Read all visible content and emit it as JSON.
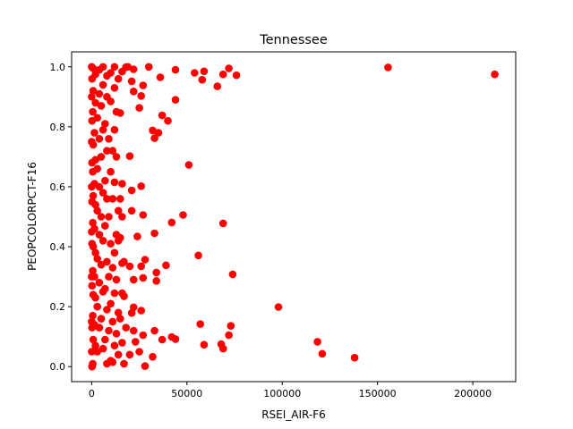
{
  "chart_data": {
    "type": "scatter",
    "title": "Tennessee",
    "xlabel": "RSEI_AIR-F6",
    "ylabel": "PEOPCOLORPCT-F16",
    "xlim": [
      -10500,
      222500
    ],
    "ylim": [
      -0.05,
      1.05
    ],
    "xticks": [
      0,
      50000,
      100000,
      150000,
      200000
    ],
    "xtick_labels": [
      "0",
      "50000",
      "100000",
      "150000",
      "200000"
    ],
    "yticks": [
      0.0,
      0.2,
      0.4,
      0.6,
      0.8,
      1.0
    ],
    "ytick_labels": [
      "0.0",
      "0.2",
      "0.4",
      "0.6",
      "0.8",
      "1.0"
    ],
    "grid": false,
    "marker_color": "#ff0000",
    "points": [
      [
        211500,
        0.975
      ],
      [
        155500,
        0.998
      ],
      [
        138000,
        0.03
      ],
      [
        121000,
        0.043
      ],
      [
        118500,
        0.083
      ],
      [
        98000,
        0.199
      ],
      [
        76000,
        0.972
      ],
      [
        72000,
        0.995
      ],
      [
        69000,
        0.975
      ],
      [
        66000,
        0.935
      ],
      [
        74000,
        0.308
      ],
      [
        73000,
        0.136
      ],
      [
        72000,
        0.105
      ],
      [
        69000,
        0.478
      ],
      [
        68000,
        0.075
      ],
      [
        69000,
        0.06
      ],
      [
        59000,
        0.985
      ],
      [
        58000,
        0.957
      ],
      [
        54000,
        0.98
      ],
      [
        44000,
        0.99
      ],
      [
        44000,
        0.89
      ],
      [
        56000,
        0.371
      ],
      [
        57000,
        0.142
      ],
      [
        59000,
        0.073
      ],
      [
        51000,
        0.673
      ],
      [
        48000,
        0.506
      ],
      [
        42000,
        0.481
      ],
      [
        39000,
        0.338
      ],
      [
        44000,
        0.092
      ],
      [
        42000,
        0.099
      ],
      [
        40000,
        0.82
      ],
      [
        36000,
        0.965
      ],
      [
        37000,
        0.838
      ],
      [
        35000,
        0.78
      ],
      [
        34000,
        0.314
      ],
      [
        33000,
        0.762
      ],
      [
        32000,
        0.788
      ],
      [
        33000,
        0.445
      ],
      [
        34000,
        0.286
      ],
      [
        33000,
        0.12
      ],
      [
        32000,
        0.033
      ],
      [
        37000,
        0.09
      ],
      [
        30000,
        1.0
      ],
      [
        27000,
        0.938
      ],
      [
        26000,
        0.903
      ],
      [
        25000,
        0.863
      ],
      [
        26000,
        0.602
      ],
      [
        27000,
        0.506
      ],
      [
        24000,
        0.434
      ],
      [
        28000,
        0.357
      ],
      [
        26000,
        0.335
      ],
      [
        27000,
        0.296
      ],
      [
        26000,
        0.187
      ],
      [
        27000,
        0.105
      ],
      [
        25000,
        0.05
      ],
      [
        28000,
        0.002
      ],
      [
        22000,
        0.992
      ],
      [
        21000,
        0.952
      ],
      [
        22000,
        0.918
      ],
      [
        19000,
        1.0
      ],
      [
        18000,
        0.999
      ],
      [
        20000,
        0.702
      ],
      [
        21000,
        0.588
      ],
      [
        21000,
        0.52
      ],
      [
        22000,
        0.29
      ],
      [
        22000,
        0.198
      ],
      [
        20000,
        0.335
      ],
      [
        21000,
        0.179
      ],
      [
        22000,
        0.12
      ],
      [
        23000,
        0.083
      ],
      [
        20000,
        0.04
      ],
      [
        16000,
        0.984
      ],
      [
        15000,
        0.846
      ],
      [
        16000,
        0.61
      ],
      [
        15000,
        0.56
      ],
      [
        16000,
        0.5
      ],
      [
        15000,
        0.43
      ],
      [
        16000,
        0.345
      ],
      [
        17000,
        0.35
      ],
      [
        16000,
        0.245
      ],
      [
        17000,
        0.235
      ],
      [
        15000,
        0.16
      ],
      [
        18000,
        0.13
      ],
      [
        16000,
        0.08
      ],
      [
        17000,
        0.01
      ],
      [
        14000,
        0.96
      ],
      [
        13000,
        0.85
      ],
      [
        13000,
        0.7
      ],
      [
        14000,
        0.52
      ],
      [
        13000,
        0.44
      ],
      [
        14000,
        0.42
      ],
      [
        13000,
        0.29
      ],
      [
        14000,
        0.18
      ],
      [
        13000,
        0.11
      ],
      [
        14000,
        0.04
      ],
      [
        12000,
        1.0
      ],
      [
        12000,
        0.93
      ],
      [
        12000,
        0.79
      ],
      [
        11000,
        0.72
      ],
      [
        12000,
        0.615
      ],
      [
        11000,
        0.56
      ],
      [
        12000,
        0.38
      ],
      [
        11000,
        0.33
      ],
      [
        12000,
        0.245
      ],
      [
        11000,
        0.15
      ],
      [
        12000,
        0.07
      ],
      [
        11000,
        0.015
      ],
      [
        10000,
        0.98
      ],
      [
        10000,
        0.885
      ],
      [
        9000,
        0.76
      ],
      [
        10000,
        0.65
      ],
      [
        9000,
        0.5
      ],
      [
        10000,
        0.41
      ],
      [
        9000,
        0.3
      ],
      [
        10000,
        0.21
      ],
      [
        9000,
        0.12
      ],
      [
        10000,
        0.02
      ],
      [
        8000,
        0.97
      ],
      [
        8000,
        0.9
      ],
      [
        7000,
        0.81
      ],
      [
        8000,
        0.72
      ],
      [
        7000,
        0.62
      ],
      [
        8000,
        0.56
      ],
      [
        7000,
        0.47
      ],
      [
        8000,
        0.35
      ],
      [
        7000,
        0.26
      ],
      [
        8000,
        0.19
      ],
      [
        7000,
        0.09
      ],
      [
        8000,
        0.01
      ],
      [
        6000,
        1.0
      ],
      [
        6000,
        0.94
      ],
      [
        5000,
        0.87
      ],
      [
        6000,
        0.79
      ],
      [
        5000,
        0.7
      ],
      [
        6000,
        0.58
      ],
      [
        5000,
        0.5
      ],
      [
        6000,
        0.42
      ],
      [
        5000,
        0.34
      ],
      [
        6000,
        0.25
      ],
      [
        5000,
        0.16
      ],
      [
        6000,
        0.06
      ],
      [
        4000,
        0.99
      ],
      [
        4000,
        0.91
      ],
      [
        3000,
        0.83
      ],
      [
        4000,
        0.76
      ],
      [
        3000,
        0.66
      ],
      [
        4000,
        0.6
      ],
      [
        3000,
        0.52
      ],
      [
        4000,
        0.44
      ],
      [
        3000,
        0.36
      ],
      [
        4000,
        0.28
      ],
      [
        3000,
        0.2
      ],
      [
        4000,
        0.13
      ],
      [
        3000,
        0.05
      ],
      [
        2000,
        0.975
      ],
      [
        2000,
        0.88
      ],
      [
        1500,
        0.78
      ],
      [
        2000,
        0.69
      ],
      [
        1500,
        0.61
      ],
      [
        2000,
        0.54
      ],
      [
        1500,
        0.46
      ],
      [
        2000,
        0.38
      ],
      [
        1500,
        0.3
      ],
      [
        2000,
        0.23
      ],
      [
        1500,
        0.14
      ],
      [
        2000,
        0.07
      ],
      [
        800,
        0.995
      ],
      [
        800,
        0.92
      ],
      [
        600,
        0.85
      ],
      [
        800,
        0.74
      ],
      [
        600,
        0.65
      ],
      [
        800,
        0.57
      ],
      [
        600,
        0.48
      ],
      [
        800,
        0.4
      ],
      [
        600,
        0.32
      ],
      [
        800,
        0.24
      ],
      [
        600,
        0.17
      ],
      [
        800,
        0.09
      ],
      [
        600,
        0.01
      ],
      [
        200,
        0.96
      ],
      [
        200,
        0.82
      ],
      [
        200,
        0.68
      ],
      [
        200,
        0.55
      ],
      [
        200,
        0.41
      ],
      [
        200,
        0.27
      ],
      [
        200,
        0.13
      ],
      [
        200,
        0.0
      ],
      [
        0,
        1.0
      ],
      [
        0,
        0.9
      ],
      [
        0,
        0.75
      ],
      [
        0,
        0.6
      ],
      [
        0,
        0.45
      ],
      [
        0,
        0.3
      ],
      [
        0,
        0.15
      ],
      [
        0,
        0.05
      ]
    ]
  }
}
